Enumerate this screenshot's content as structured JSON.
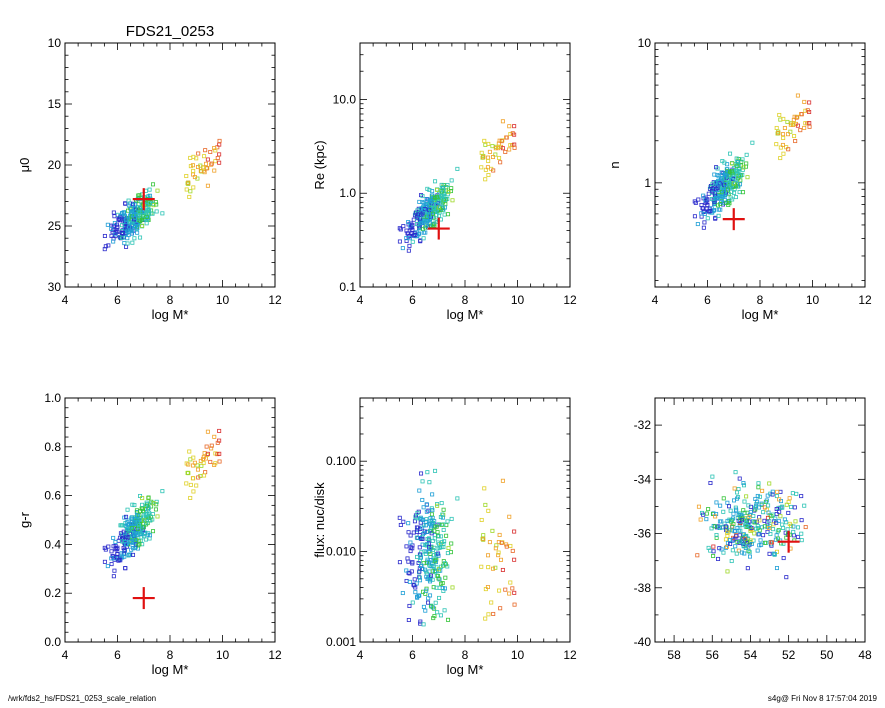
{
  "figure_title": "FDS21_0253",
  "footer": {
    "path": "/wrk/fds2_hs/FDS21_0253_scale_relation",
    "stamp": "s4g@  Fri Nov  8 17:57:04 2019"
  },
  "colors": {
    "scale": [
      "#2b2bcc",
      "#1f9fd6",
      "#2ec4b6",
      "#35c43a",
      "#9fd82a",
      "#e0d12a",
      "#f0a22a",
      "#e86a2a",
      "#d93030"
    ],
    "marker": "#e01010"
  },
  "chart_data": [
    {
      "type": "scatter",
      "id": "mu0",
      "xlabel": "log M*",
      "ylabel": "μ0",
      "xlim": [
        4,
        12
      ],
      "ylim": [
        30,
        10
      ],
      "y_inverted": true,
      "xticks": [
        4,
        6,
        8,
        10,
        12
      ],
      "yticks": [
        10,
        15,
        20,
        25,
        30
      ],
      "marker": {
        "x": 7.0,
        "y": 22.8
      }
    },
    {
      "type": "scatter",
      "id": "re",
      "xlabel": "log M*",
      "ylabel": "Re (kpc)",
      "xlim": [
        4,
        12
      ],
      "ylim": [
        0.1,
        40
      ],
      "yscale": "log",
      "xticks": [
        4,
        6,
        8,
        10,
        12
      ],
      "yticks": [
        0.1,
        1.0,
        10.0
      ],
      "ytick_labels": [
        "0.1",
        "1.0",
        "10.0"
      ],
      "marker": {
        "x": 7.0,
        "y": 0.42
      }
    },
    {
      "type": "scatter",
      "id": "n",
      "xlabel": "log M*",
      "ylabel": "n",
      "xlim": [
        4,
        12
      ],
      "ylim": [
        0.18,
        10
      ],
      "yscale": "log",
      "xticks": [
        4,
        6,
        8,
        10,
        12
      ],
      "yticks": [
        1,
        10
      ],
      "ytick_labels": [
        "1",
        "10"
      ],
      "marker": {
        "x": 7.0,
        "y": 0.55
      }
    },
    {
      "type": "scatter",
      "id": "gr",
      "xlabel": "log M*",
      "ylabel": "g-r",
      "xlim": [
        4,
        12
      ],
      "ylim": [
        0.0,
        1.0
      ],
      "xticks": [
        4,
        6,
        8,
        10,
        12
      ],
      "yticks": [
        0.0,
        0.2,
        0.4,
        0.6,
        0.8,
        1.0
      ],
      "ytick_labels": [
        "0.0",
        "0.2",
        "0.4",
        "0.6",
        "0.8",
        "1.0"
      ],
      "marker": {
        "x": 7.0,
        "y": 0.18
      }
    },
    {
      "type": "scatter",
      "id": "flux",
      "xlabel": "log M*",
      "ylabel": "flux: nuc/disk",
      "xlim": [
        4,
        12
      ],
      "ylim": [
        0.001,
        0.5
      ],
      "yscale": "log",
      "xticks": [
        4,
        6,
        8,
        10,
        12
      ],
      "yticks": [
        0.001,
        0.01,
        0.1
      ],
      "ytick_labels": [
        "0.001",
        "0.010",
        "0.100"
      ],
      "marker": null
    },
    {
      "type": "scatter",
      "id": "sky",
      "xlabel": "",
      "ylabel": "",
      "xlim": [
        59,
        48
      ],
      "ylim": [
        -40,
        -31
      ],
      "xticks": [
        58,
        56,
        54,
        52,
        50,
        48
      ],
      "yticks": [
        -40,
        -38,
        -36,
        -34,
        -32
      ],
      "marker": {
        "x": 52.0,
        "y": -36.3
      }
    }
  ]
}
